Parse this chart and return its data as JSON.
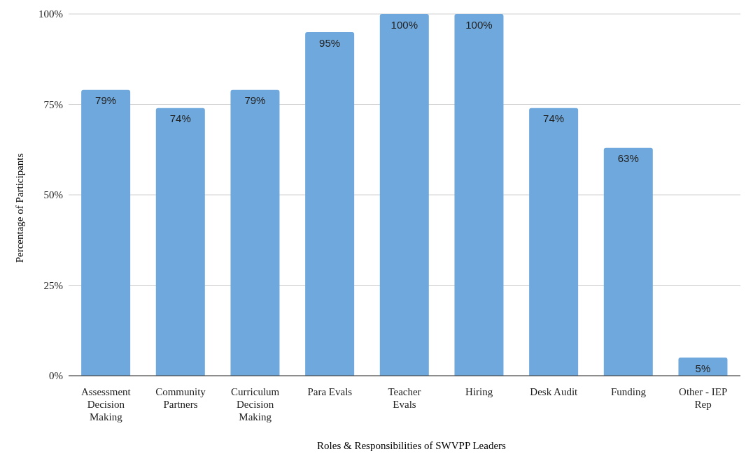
{
  "chart_data": {
    "type": "bar",
    "xlabel": "Roles & Responsibilities of SWVPP Leaders",
    "ylabel": "Percentage of Participants",
    "categories": [
      "Assessment Decision Making",
      "Community Partners",
      "Curriculum Decision Making",
      "Para Evals",
      "Teacher Evals",
      "Hiring",
      "Desk Audit",
      "Funding",
      "Other - IEP Rep"
    ],
    "values": [
      79,
      74,
      79,
      95,
      100,
      100,
      74,
      63,
      5
    ],
    "value_labels": [
      "79%",
      "74%",
      "79%",
      "95%",
      "100%",
      "100%",
      "74%",
      "63%",
      "5%"
    ],
    "color": "#6fa8dc",
    "ylim": [
      0,
      100
    ],
    "yticks": [
      {
        "value": 0,
        "label": "0%"
      },
      {
        "value": 25,
        "label": "25%"
      },
      {
        "value": 50,
        "label": "50%"
      },
      {
        "value": 75,
        "label": "75%"
      },
      {
        "value": 100,
        "label": "100%"
      }
    ],
    "grid": "y"
  }
}
